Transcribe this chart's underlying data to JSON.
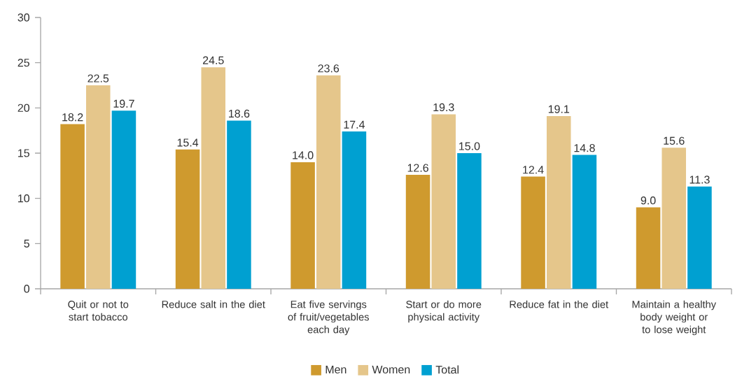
{
  "chart_data": {
    "type": "bar",
    "categories": [
      "Quit or not to start tobacco",
      "Reduce salt in the diet",
      "Eat five servings of fruit/vegetables each day",
      "Start or do more physical activity",
      "Reduce fat in the diet",
      "Maintain a healthy body weight or to lose weight"
    ],
    "series": [
      {
        "name": "Men",
        "color": "#cf9a2e",
        "values": [
          18.2,
          15.4,
          14.0,
          12.6,
          12.4,
          9.0
        ],
        "value_labels": [
          "18.2",
          "15.4",
          "14.0",
          "12.6",
          "12.4",
          "9.0"
        ]
      },
      {
        "name": "Women",
        "color": "#e5c68b",
        "values": [
          22.5,
          24.5,
          23.6,
          19.3,
          19.1,
          15.6
        ],
        "value_labels": [
          "22.5",
          "24.5",
          "23.6",
          "19.3",
          "19.1",
          "15.6"
        ]
      },
      {
        "name": "Total",
        "color": "#00a0d1",
        "values": [
          19.7,
          18.6,
          17.4,
          15.0,
          14.8,
          11.3
        ],
        "value_labels": [
          "19.7",
          "18.6",
          "17.4",
          "15.0",
          "14.8",
          "11.3"
        ]
      }
    ],
    "ylim": [
      0,
      30
    ],
    "yticks": [
      0,
      5,
      10,
      15,
      20,
      25,
      30
    ],
    "legend": "bottom"
  }
}
